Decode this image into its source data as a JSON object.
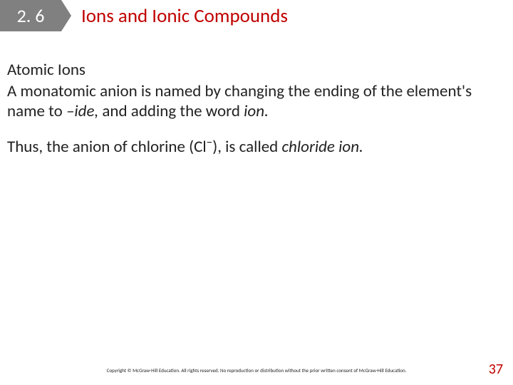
{
  "colors": {
    "accent_red": "#c00000",
    "section_bg": "#808080",
    "section_fg": "#ffffff",
    "body_text": "#222222",
    "page_bg": "#ffffff"
  },
  "header": {
    "section_number": "2. 6",
    "title": "Ions and Ionic Compounds"
  },
  "body": {
    "subhead": "Atomic Ions",
    "p1_part1": "A monatomic anion is named by changing the ending of the element's name to ",
    "p1_ital1": "–ide,",
    "p1_part2": " and adding the word ",
    "p1_ital2": "ion.",
    "p2_part1": "Thus, the anion of chlorine (Cl",
    "p2_sup": "−",
    "p2_part2": "), is called ",
    "p2_ital1": "chloride ion."
  },
  "footer": {
    "copyright": "Copyright © McGraw-Hill Education. All rights reserved. No reproduction or distribution without the prior written consent of McGraw-Hill Education.",
    "page_number": "37"
  }
}
